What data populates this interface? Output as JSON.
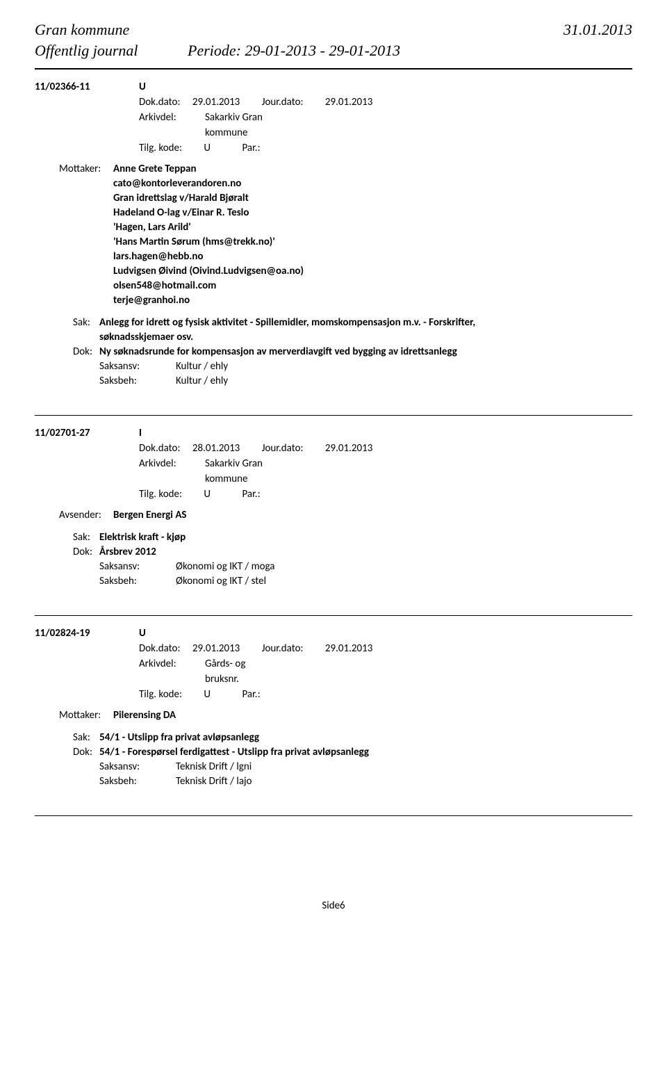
{
  "header": {
    "org": "Gran kommune",
    "date": "31.01.2013",
    "journal_label": "Offentlig journal",
    "period": "Periode: 29-01-2013 - 29-01-2013"
  },
  "entries": [
    {
      "case_id": "11/02366-11",
      "doc_type": "U",
      "dok_dato_label": "Dok.dato:",
      "dok_dato": "29.01.2013",
      "jour_dato_label": "Jour.dato:",
      "jour_dato": "29.01.2013",
      "arkivdel_label": "Arkivdel:",
      "arkivdel": "Sakarkiv Gran",
      "arkivdel2": "kommune",
      "tilg_label": "Tilg. kode:",
      "tilg_value": "U",
      "par_label": "Par.:",
      "party_role": "Mottaker:",
      "party_name": "Anne Grete Teppan",
      "subparties": [
        "cato@kontorleverandoren.no",
        "Gran idrettslag v/Harald Bjøralt",
        "Hadeland O-lag v/Einar R. Teslo",
        "'Hagen, Lars Arild'",
        "'Hans Martin Sørum (hms@trekk.no)'",
        "lars.hagen@hebb.no",
        "Ludvigsen Øivind (Oivind.Ludvigsen@oa.no)",
        "olsen548@hotmail.com",
        "terje@granhoi.no"
      ],
      "sak_label": "Sak:",
      "sak_text": "Anlegg for idrett og fysisk aktivitet - Spillemidler, momskompensasjon m.v. - Forskrifter,",
      "sak_cont": "søknadsskjemaer osv.",
      "dok_label": "Dok:",
      "dok_text": "Ny søknadsrunde for kompensasjon av merverdiavgift ved bygging av idrettsanlegg",
      "saksansv_label": "Saksansv:",
      "saksansv": "Kultur / ehly",
      "saksbeh_label": "Saksbeh:",
      "saksbeh": "Kultur / ehly"
    },
    {
      "case_id": "11/02701-27",
      "doc_type": "I",
      "dok_dato_label": "Dok.dato:",
      "dok_dato": "28.01.2013",
      "jour_dato_label": "Jour.dato:",
      "jour_dato": "29.01.2013",
      "arkivdel_label": "Arkivdel:",
      "arkivdel": "Sakarkiv Gran",
      "arkivdel2": "kommune",
      "tilg_label": "Tilg. kode:",
      "tilg_value": "U",
      "par_label": "Par.:",
      "party_role": "Avsender:",
      "party_name": "Bergen Energi AS",
      "subparties": [],
      "sak_label": "Sak:",
      "sak_text": "Elektrisk kraft - kjøp",
      "sak_cont": "",
      "dok_label": "Dok:",
      "dok_text": "Årsbrev 2012",
      "saksansv_label": "Saksansv:",
      "saksansv": "Økonomi og IKT / moga",
      "saksbeh_label": "Saksbeh:",
      "saksbeh": "Økonomi og IKT / stel"
    },
    {
      "case_id": "11/02824-19",
      "doc_type": "U",
      "dok_dato_label": "Dok.dato:",
      "dok_dato": "29.01.2013",
      "jour_dato_label": "Jour.dato:",
      "jour_dato": "29.01.2013",
      "arkivdel_label": "Arkivdel:",
      "arkivdel": "Gårds- og",
      "arkivdel2": "bruksnr.",
      "tilg_label": "Tilg. kode:",
      "tilg_value": "U",
      "par_label": "Par.:",
      "party_role": "Mottaker:",
      "party_name": "Pilerensing DA",
      "subparties": [],
      "sak_label": "Sak:",
      "sak_text": "54/1 - Utslipp fra privat avløpsanlegg",
      "sak_cont": "",
      "dok_label": "Dok:",
      "dok_text": "54/1 - Forespørsel ferdigattest - Utslipp fra privat avløpsanlegg",
      "saksansv_label": "Saksansv:",
      "saksansv": "Teknisk Drift / lgni",
      "saksbeh_label": "Saksbeh:",
      "saksbeh": "Teknisk Drift / lajo"
    }
  ],
  "footer": "Side6"
}
